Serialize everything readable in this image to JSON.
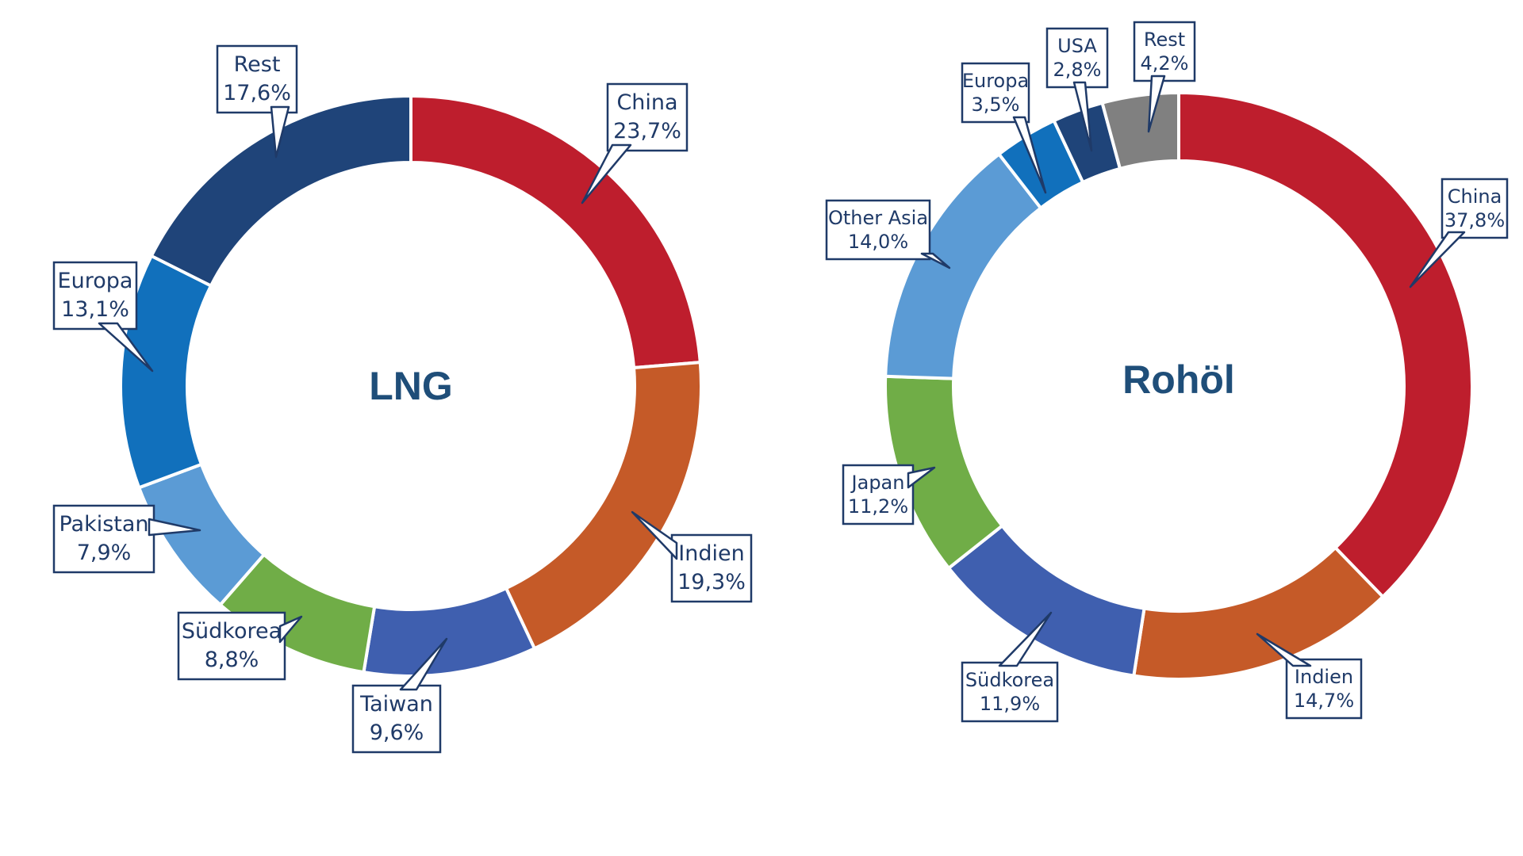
{
  "chart_data": [
    {
      "type": "pie",
      "title": "LNG",
      "categories": [
        "China",
        "Indien",
        "Taiwan",
        "Südkorea",
        "Pakistan",
        "Europa",
        "Rest"
      ],
      "values": [
        23.7,
        19.3,
        9.6,
        8.8,
        7.9,
        13.1,
        17.6
      ],
      "labels": [
        "23,7%",
        "19,3%",
        "9,6%",
        "8,8%",
        "7,9%",
        "13,1%",
        "17,6%"
      ],
      "colors": [
        "#be1e2d",
        "#c55a28",
        "#3f5faf",
        "#70ad47",
        "#5b9bd5",
        "#1170bc",
        "#1f4479"
      ]
    },
    {
      "type": "pie",
      "title": "Rohöl",
      "categories": [
        "China",
        "Indien",
        "Südkorea",
        "Japan",
        "Other Asia",
        "Europa",
        "USA",
        "Rest"
      ],
      "values": [
        37.8,
        14.7,
        11.9,
        11.2,
        14.0,
        3.5,
        2.8,
        4.2
      ],
      "labels": [
        "37,8%",
        "14,7%",
        "11,9%",
        "11,2%",
        "14,0%",
        "3,5%",
        "2,8%",
        "4,2%"
      ],
      "colors": [
        "#be1e2d",
        "#c55a28",
        "#3f5faf",
        "#70ad47",
        "#5b9bd5",
        "#1170bc",
        "#1f4479",
        "#808080"
      ]
    }
  ]
}
